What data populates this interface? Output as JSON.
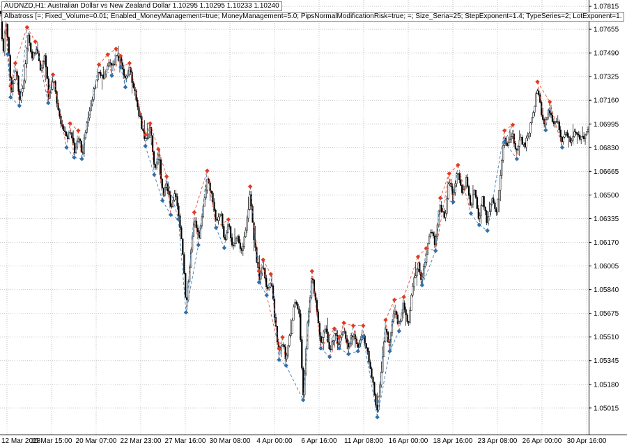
{
  "header": {
    "symbol_line": "AUDNZD,H1:   Australian Dollar vs New Zealand Dollar   1.10295 1.10295 1.10233 1.10240",
    "indicator_line": "Albatross [=; Fixed_Volume=0.01; Enabled_MoneyManagement=true; MoneyManagement=5.0; PipsNormalModificationRisk=true; =; Size_Seria=25; StepExponent=1.4; TypeSeries=2; LotExponent=1."
  },
  "chart_data": {
    "type": "line",
    "subtype": "ohlc-candlestick-with-signal-arrows",
    "symbol": "AUDNZD",
    "timeframe": "H1",
    "title": "AUDNZD,H1:   Australian Dollar vs New Zealand Dollar   1.10295 1.10295 1.10233 1.10240",
    "indicator": "Albatross expert advisor signal markers connected by dashed red/blue lines",
    "grid": true,
    "legend": "none",
    "bars": 430,
    "ylim": [
      1.0483,
      1.07859
    ],
    "y_axis": {
      "side": "right",
      "ticks": [
        "1.07815",
        "1.07655",
        "1.07490",
        "1.07325",
        "1.07160",
        "1.06995",
        "1.06830",
        "1.06665",
        "1.06500",
        "1.06335",
        "1.06170",
        "1.06005",
        "1.05840",
        "1.05675",
        "1.05510",
        "1.05345",
        "1.05180",
        "1.05015"
      ]
    },
    "x_axis": {
      "ticks": [
        "12 Mar 2018",
        "15 Mar 15:00",
        "20 Mar 07:00",
        "22 Mar 23:00",
        "27 Mar 16:00",
        "30 Mar 08:00",
        "4 Apr 00:00",
        "6 Apr 16:00",
        "11 Apr 08:00",
        "16 Apr 00:00",
        "18 Apr 16:00",
        "23 Apr 08:00",
        "26 Apr 00:00",
        "30 Apr 16:00"
      ]
    },
    "colors": {
      "background": "#ffffff",
      "candle": "#000000",
      "grid": "#c6c6c6",
      "axis_line": "#000000",
      "signal_red": "#e03a20",
      "signal_blue": "#2f6fad"
    },
    "signals": {
      "marker_offset_px": 8,
      "connect_next_dt": 0.03,
      "connect_skip_dt": 0.024
    },
    "price_path": [
      [
        0.0,
        1.0778,
        0
      ],
      [
        0.004,
        1.0746,
        0
      ],
      [
        0.009,
        1.0772,
        1
      ],
      [
        0.013,
        1.0752,
        2
      ],
      [
        0.018,
        1.0722,
        3
      ],
      [
        0.026,
        1.0738,
        1
      ],
      [
        0.033,
        1.0716,
        2
      ],
      [
        0.04,
        1.073,
        0
      ],
      [
        0.046,
        1.0763,
        1
      ],
      [
        0.053,
        1.0744,
        0
      ],
      [
        0.06,
        1.0753,
        1
      ],
      [
        0.068,
        1.0737,
        0
      ],
      [
        0.075,
        1.0746,
        0
      ],
      [
        0.082,
        1.0718,
        3
      ],
      [
        0.09,
        1.073,
        1
      ],
      [
        0.098,
        1.0708,
        0
      ],
      [
        0.106,
        1.0697,
        0
      ],
      [
        0.113,
        1.0687,
        2
      ],
      [
        0.119,
        1.0696,
        1
      ],
      [
        0.126,
        1.068,
        2
      ],
      [
        0.133,
        1.0691,
        1
      ],
      [
        0.139,
        1.0679,
        2
      ],
      [
        0.148,
        1.0704,
        0
      ],
      [
        0.158,
        1.0722,
        0
      ],
      [
        0.168,
        1.0737,
        1
      ],
      [
        0.175,
        1.0729,
        0
      ],
      [
        0.183,
        1.0744,
        1
      ],
      [
        0.19,
        1.0737,
        2
      ],
      [
        0.197,
        1.0748,
        1
      ],
      [
        0.205,
        1.0743,
        3
      ],
      [
        0.213,
        1.0729,
        2
      ],
      [
        0.22,
        1.0738,
        1
      ],
      [
        0.23,
        1.0718,
        0
      ],
      [
        0.24,
        1.0698,
        0
      ],
      [
        0.247,
        1.0688,
        3
      ],
      [
        0.255,
        1.0696,
        1
      ],
      [
        0.262,
        1.0668,
        2
      ],
      [
        0.269,
        1.0678,
        1
      ],
      [
        0.276,
        1.065,
        2
      ],
      [
        0.283,
        1.0659,
        1
      ],
      [
        0.29,
        1.064,
        2
      ],
      [
        0.297,
        1.0651,
        0
      ],
      [
        0.303,
        1.0637,
        2
      ],
      [
        0.31,
        1.0608,
        0
      ],
      [
        0.316,
        1.0572,
        2
      ],
      [
        0.323,
        1.0608,
        0
      ],
      [
        0.33,
        1.0634,
        1
      ],
      [
        0.337,
        1.0619,
        2
      ],
      [
        0.345,
        1.0641,
        0
      ],
      [
        0.352,
        1.0663,
        1
      ],
      [
        0.36,
        1.0649,
        0
      ],
      [
        0.367,
        1.0631,
        2
      ],
      [
        0.374,
        1.0639,
        0
      ],
      [
        0.381,
        1.0617,
        2
      ],
      [
        0.388,
        1.0629,
        1
      ],
      [
        0.395,
        1.0614,
        0
      ],
      [
        0.403,
        1.0621,
        0
      ],
      [
        0.411,
        1.0611,
        0
      ],
      [
        0.418,
        1.0627,
        0
      ],
      [
        0.425,
        1.0652,
        1
      ],
      [
        0.432,
        1.0617,
        0
      ],
      [
        0.44,
        1.0593,
        3
      ],
      [
        0.447,
        1.0601,
        1
      ],
      [
        0.453,
        1.0584,
        2
      ],
      [
        0.46,
        1.0591,
        1
      ],
      [
        0.468,
        1.0559,
        0
      ],
      [
        0.474,
        1.0539,
        3
      ],
      [
        0.48,
        1.0547,
        1
      ],
      [
        0.486,
        1.0535,
        2
      ],
      [
        0.494,
        1.0555,
        0
      ],
      [
        0.5,
        1.0577,
        0
      ],
      [
        0.508,
        1.0569,
        0
      ],
      [
        0.515,
        1.0511,
        2
      ],
      [
        0.522,
        1.0559,
        0
      ],
      [
        0.53,
        1.0593,
        1
      ],
      [
        0.538,
        1.0569,
        0
      ],
      [
        0.545,
        1.0547,
        2
      ],
      [
        0.552,
        1.0559,
        0
      ],
      [
        0.56,
        1.0541,
        2
      ],
      [
        0.568,
        1.0553,
        1
      ],
      [
        0.576,
        1.0547,
        3
      ],
      [
        0.584,
        1.0557,
        1
      ],
      [
        0.592,
        1.0543,
        2
      ],
      [
        0.6,
        1.0555,
        1
      ],
      [
        0.608,
        1.0545,
        2
      ],
      [
        0.617,
        1.0555,
        3
      ],
      [
        0.625,
        1.0539,
        0
      ],
      [
        0.633,
        1.0521,
        0
      ],
      [
        0.641,
        1.0499,
        2
      ],
      [
        0.648,
        1.0529,
        0
      ],
      [
        0.655,
        1.0559,
        1
      ],
      [
        0.662,
        1.0545,
        2
      ],
      [
        0.67,
        1.0573,
        1
      ],
      [
        0.678,
        1.0559,
        2
      ],
      [
        0.686,
        1.0575,
        1
      ],
      [
        0.694,
        1.0561,
        0
      ],
      [
        0.702,
        1.0587,
        0
      ],
      [
        0.71,
        1.0603,
        1
      ],
      [
        0.717,
        1.0591,
        2
      ],
      [
        0.724,
        1.0609,
        1
      ],
      [
        0.732,
        1.0625,
        0
      ],
      [
        0.74,
        1.0615,
        2
      ],
      [
        0.748,
        1.0644,
        1
      ],
      [
        0.756,
        1.0631,
        0
      ],
      [
        0.763,
        1.0661,
        1
      ],
      [
        0.77,
        1.0649,
        2
      ],
      [
        0.778,
        1.0667,
        1
      ],
      [
        0.786,
        1.0651,
        0
      ],
      [
        0.793,
        1.0663,
        0
      ],
      [
        0.8,
        1.0641,
        2
      ],
      [
        0.807,
        1.0655,
        0
      ],
      [
        0.814,
        1.0633,
        2
      ],
      [
        0.821,
        1.0649,
        0
      ],
      [
        0.828,
        1.0629,
        2
      ],
      [
        0.836,
        1.0647,
        0
      ],
      [
        0.843,
        1.0637,
        0
      ],
      [
        0.85,
        1.0661,
        0
      ],
      [
        0.857,
        1.0691,
        3
      ],
      [
        0.864,
        1.0683,
        0
      ],
      [
        0.871,
        1.0695,
        1
      ],
      [
        0.878,
        1.0679,
        2
      ],
      [
        0.885,
        1.0691,
        0
      ],
      [
        0.892,
        1.0683,
        0
      ],
      [
        0.899,
        1.0693,
        0
      ],
      [
        0.906,
        1.0705,
        0
      ],
      [
        0.913,
        1.0725,
        1
      ],
      [
        0.92,
        1.0709,
        0
      ],
      [
        0.927,
        1.0699,
        2
      ],
      [
        0.934,
        1.0711,
        1
      ],
      [
        0.941,
        1.0697,
        0
      ],
      [
        0.948,
        1.0705,
        0
      ],
      [
        0.955,
        1.0687,
        2
      ],
      [
        0.962,
        1.0695,
        0
      ],
      [
        0.97,
        1.0685,
        0
      ],
      [
        0.978,
        1.0695,
        0
      ],
      [
        0.986,
        1.0687,
        0
      ],
      [
        1.0,
        1.0694,
        0
      ]
    ]
  }
}
